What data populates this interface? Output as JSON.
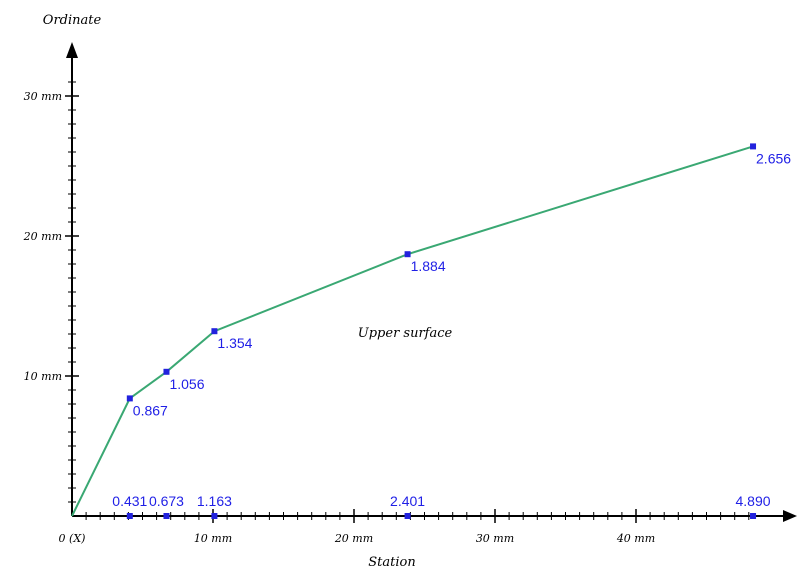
{
  "colors": {
    "line": "#3aa873",
    "marker": "#2222dd",
    "label": "#1f1fe6",
    "axis": "#000000"
  },
  "chart_data": {
    "type": "line",
    "title": "",
    "xlabel": "Station",
    "ylabel": "Ordinate",
    "xlim": [
      0,
      48
    ],
    "ylim": [
      0,
      30
    ],
    "grid": false,
    "legend": "none",
    "x_ticks": [
      {
        "value": 0,
        "label": "0 (X)"
      },
      {
        "value": 10,
        "label": "10 mm"
      },
      {
        "value": 20,
        "label": "20 mm"
      },
      {
        "value": 30,
        "label": "30 mm"
      },
      {
        "value": 40,
        "label": "40 mm"
      }
    ],
    "y_ticks": [
      {
        "value": 10,
        "label": "10 mm"
      },
      {
        "value": 20,
        "label": "20 mm"
      },
      {
        "value": 30,
        "label": "30 mm"
      }
    ],
    "annotation": "Upper surface",
    "series": [
      {
        "points": [
          {
            "x": 0,
            "y": 0,
            "label": ""
          },
          {
            "x": 4.1,
            "y": 8.4,
            "label": "0.867"
          },
          {
            "x": 6.7,
            "y": 10.3,
            "label": "1.056"
          },
          {
            "x": 10.1,
            "y": 13.2,
            "label": "1.354"
          },
          {
            "x": 23.8,
            "y": 18.7,
            "label": "1.884"
          },
          {
            "x": 48.3,
            "y": 26.4,
            "label": "2.656"
          }
        ]
      }
    ],
    "station_markers": [
      {
        "x": 4.1,
        "label": "0.431"
      },
      {
        "x": 6.7,
        "label": "0.673"
      },
      {
        "x": 10.1,
        "label": "1.163"
      },
      {
        "x": 23.8,
        "label": "2.401"
      },
      {
        "x": 48.3,
        "label": "4.890"
      }
    ]
  }
}
